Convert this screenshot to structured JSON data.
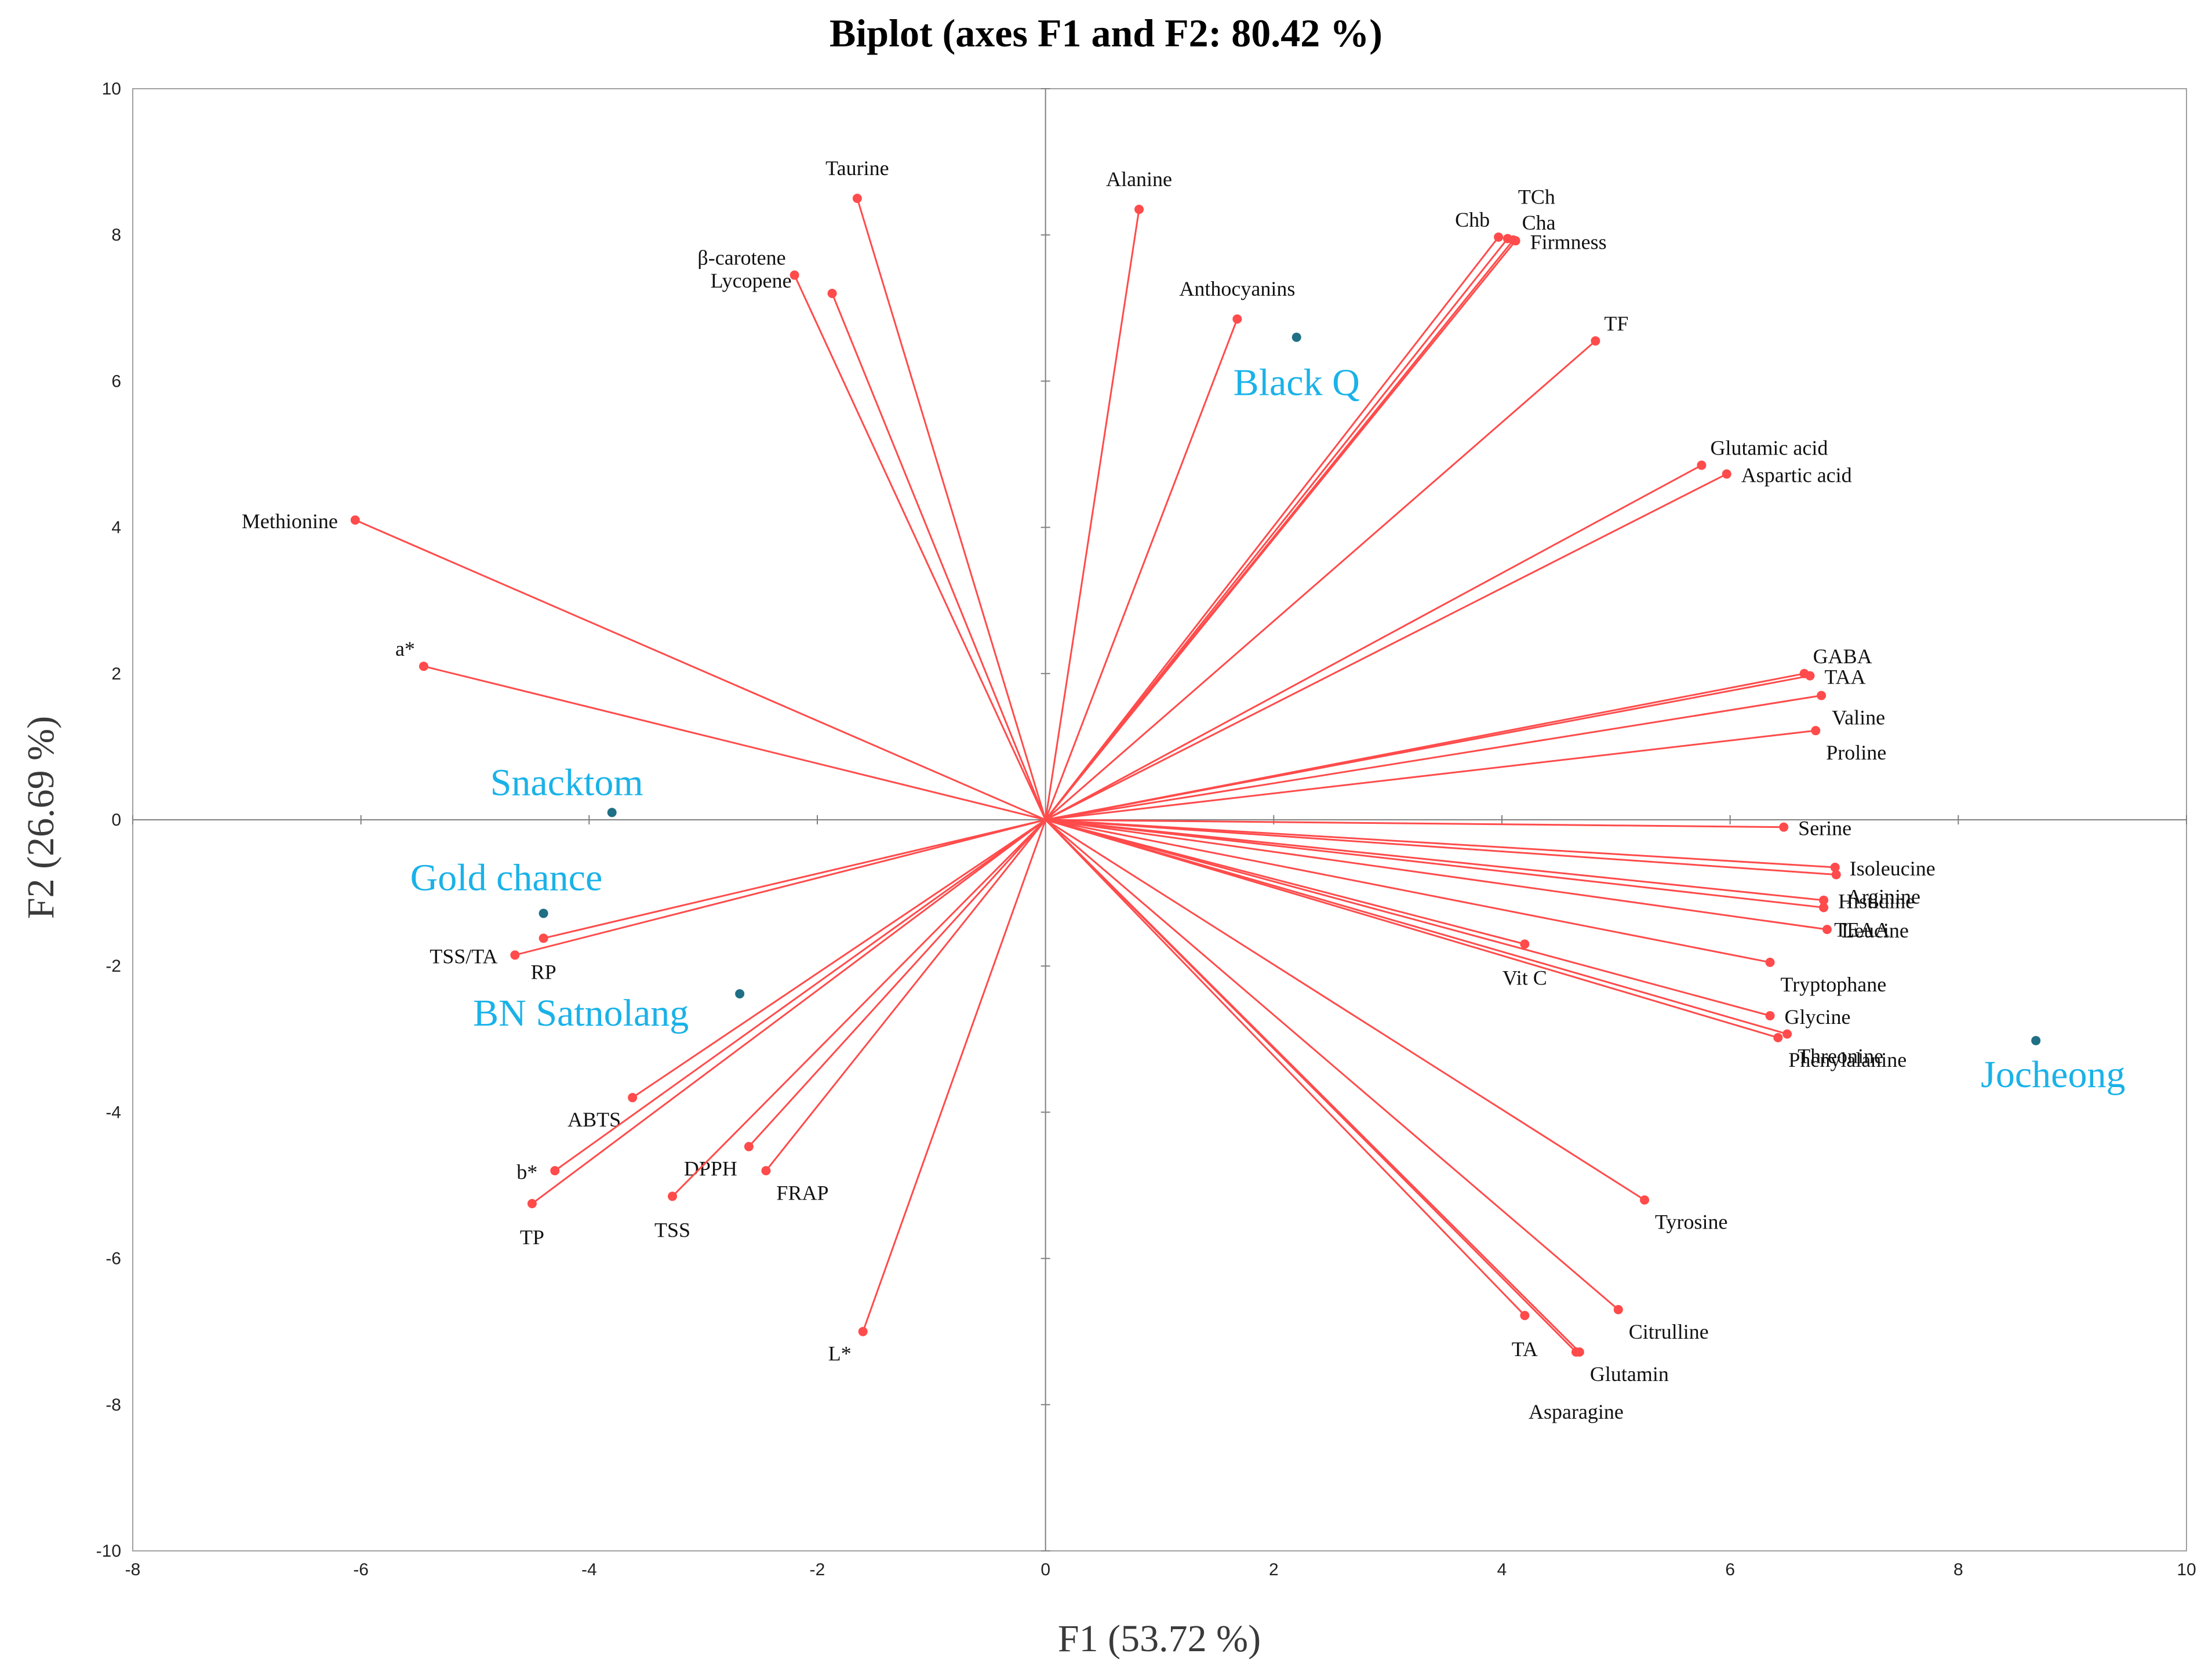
{
  "chart_data": {
    "type": "scatter",
    "subtype": "pca-biplot",
    "title": "Biplot (axes F1 and F2: 80.42 %)",
    "xlabel": "F1 (53.72 %)",
    "ylabel": "F2 (26.69 %)",
    "xlim": [
      -8,
      10
    ],
    "ylim": [
      -10,
      10
    ],
    "xticks": [
      -8,
      -6,
      -4,
      -2,
      0,
      2,
      4,
      6,
      8,
      10
    ],
    "yticks": [
      -10,
      -8,
      -6,
      -4,
      -2,
      0,
      2,
      4,
      6,
      8,
      10
    ],
    "grid": false,
    "colors": {
      "variables": "#ff4b4b",
      "observations": "#1f6f85",
      "observation_labels": "#1ab2e8",
      "axes": "#808080"
    },
    "variables": [
      {
        "name": "Taurine",
        "x": -1.65,
        "y": 8.5,
        "label_pos": "top"
      },
      {
        "name": "β-carotene",
        "x": -2.2,
        "y": 7.45,
        "label_pos": "upper-left"
      },
      {
        "name": "Lycopene",
        "x": -1.87,
        "y": 7.2,
        "label_pos": "upper-left-far"
      },
      {
        "name": "Methionine",
        "x": -6.05,
        "y": 4.1,
        "label_pos": "left"
      },
      {
        "name": "a*",
        "x": -5.45,
        "y": 2.1,
        "label_pos": "upper-left"
      },
      {
        "name": "Alanine",
        "x": 0.82,
        "y": 8.35,
        "label_pos": "top"
      },
      {
        "name": "Anthocyanins",
        "x": 1.68,
        "y": 6.85,
        "label_pos": "top"
      },
      {
        "name": "Chb",
        "x": 3.97,
        "y": 7.97,
        "label_pos": "upper-left"
      },
      {
        "name": "TCh",
        "x": 4.05,
        "y": 7.95,
        "label_pos": "top-right"
      },
      {
        "name": "Cha",
        "x": 4.1,
        "y": 7.93,
        "label_pos": "upper-right"
      },
      {
        "name": "Firmness",
        "x": 4.12,
        "y": 7.92,
        "label_pos": "right"
      },
      {
        "name": "TF",
        "x": 4.82,
        "y": 6.55,
        "label_pos": "upper-right"
      },
      {
        "name": "Glutamic acid",
        "x": 5.75,
        "y": 4.85,
        "label_pos": "upper-right"
      },
      {
        "name": "Aspartic acid",
        "x": 5.97,
        "y": 4.73,
        "label_pos": "right"
      },
      {
        "name": "GABA",
        "x": 6.65,
        "y": 2.0,
        "label_pos": "upper-right"
      },
      {
        "name": "TAA",
        "x": 6.7,
        "y": 1.97,
        "label_pos": "right"
      },
      {
        "name": "Valine",
        "x": 6.8,
        "y": 1.7,
        "label_pos": "lower-right"
      },
      {
        "name": "Proline",
        "x": 6.75,
        "y": 1.22,
        "label_pos": "lower-right"
      },
      {
        "name": "Serine",
        "x": 6.47,
        "y": -0.1,
        "label_pos": "right"
      },
      {
        "name": "Isoleucine",
        "x": 6.92,
        "y": -0.65,
        "label_pos": "right"
      },
      {
        "name": "Arginine",
        "x": 6.93,
        "y": -0.75,
        "label_pos": "lower-right"
      },
      {
        "name": "Histidine",
        "x": 6.82,
        "y": -1.1,
        "label_pos": "right"
      },
      {
        "name": "Leucine",
        "x": 6.85,
        "y": -1.5,
        "label_pos": "right"
      },
      {
        "name": "TEAA",
        "x": 6.82,
        "y": -1.2,
        "label_pos": "lower-right"
      },
      {
        "name": "Tryptophane",
        "x": 6.35,
        "y": -1.95,
        "label_pos": "lower-right"
      },
      {
        "name": "Vit C",
        "x": 4.2,
        "y": -1.7,
        "label_pos": "below"
      },
      {
        "name": "Glycine",
        "x": 6.35,
        "y": -2.68,
        "label_pos": "right"
      },
      {
        "name": "Threonine",
        "x": 6.5,
        "y": -2.93,
        "label_pos": "lower-right"
      },
      {
        "name": "Phenylalanine",
        "x": 6.42,
        "y": -2.98,
        "label_pos": "lower-right"
      },
      {
        "name": "Tyrosine",
        "x": 5.25,
        "y": -5.2,
        "label_pos": "lower-right"
      },
      {
        "name": "Citrulline",
        "x": 5.02,
        "y": -6.7,
        "label_pos": "lower-right"
      },
      {
        "name": "TA",
        "x": 4.2,
        "y": -6.78,
        "label_pos": "below"
      },
      {
        "name": "Glutamin",
        "x": 4.68,
        "y": -7.28,
        "label_pos": "lower-right"
      },
      {
        "name": "Asparagine",
        "x": 4.65,
        "y": -7.28,
        "label_pos": "below-far"
      },
      {
        "name": "TSS/TA",
        "x": -4.65,
        "y": -1.85,
        "label_pos": "left"
      },
      {
        "name": "RP",
        "x": -4.4,
        "y": -1.62,
        "label_pos": "below"
      },
      {
        "name": "ABTS",
        "x": -3.62,
        "y": -3.8,
        "label_pos": "lower-left"
      },
      {
        "name": "b*",
        "x": -4.3,
        "y": -4.8,
        "label_pos": "left"
      },
      {
        "name": "TP",
        "x": -4.5,
        "y": -5.25,
        "label_pos": "below"
      },
      {
        "name": "DPPH",
        "x": -2.6,
        "y": -4.47,
        "label_pos": "lower-left"
      },
      {
        "name": "TSS",
        "x": -3.27,
        "y": -5.15,
        "label_pos": "below"
      },
      {
        "name": "FRAP",
        "x": -2.45,
        "y": -4.8,
        "label_pos": "lower-right"
      },
      {
        "name": "L*",
        "x": -1.6,
        "y": -7.0,
        "label_pos": "lower-left"
      }
    ],
    "observations": [
      {
        "name": "Black Q",
        "x": 2.2,
        "y": 6.6
      },
      {
        "name": "Snacktom",
        "x": -3.8,
        "y": 0.1
      },
      {
        "name": "Gold chance",
        "x": -4.4,
        "y": -1.28
      },
      {
        "name": "BN Satnolang",
        "x": -2.68,
        "y": -2.38
      },
      {
        "name": "Jocheong",
        "x": 8.68,
        "y": -3.02
      }
    ]
  }
}
